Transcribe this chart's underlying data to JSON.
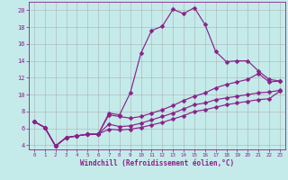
{
  "xlabel": "Windchill (Refroidissement éolien,°C)",
  "bg_color": "#c5eaea",
  "line_color": "#882288",
  "grid_color": "#aaaaaa",
  "xlim": [
    -0.5,
    23.5
  ],
  "ylim": [
    3.5,
    21.0
  ],
  "xticks": [
    0,
    1,
    2,
    3,
    4,
    5,
    6,
    7,
    8,
    9,
    10,
    11,
    12,
    13,
    14,
    15,
    16,
    17,
    18,
    19,
    20,
    21,
    22,
    23
  ],
  "yticks": [
    4,
    6,
    8,
    10,
    12,
    14,
    16,
    18,
    20
  ],
  "line1_x": [
    0,
    1,
    2,
    3,
    4,
    5,
    6,
    7,
    8,
    9,
    10,
    11,
    12,
    13,
    14,
    15,
    16,
    17,
    18,
    19,
    20,
    21,
    22,
    23
  ],
  "line1_y": [
    6.8,
    6.1,
    3.9,
    4.9,
    5.1,
    5.3,
    5.3,
    7.8,
    7.6,
    10.2,
    14.9,
    17.6,
    18.1,
    20.1,
    19.6,
    20.3,
    18.3,
    15.1,
    13.9,
    14.0,
    14.0,
    12.8,
    11.8,
    11.6
  ],
  "line2_x": [
    0,
    1,
    2,
    3,
    4,
    5,
    6,
    7,
    8,
    9,
    10,
    11,
    12,
    13,
    14,
    15,
    16,
    17,
    18,
    19,
    20,
    21,
    22,
    23
  ],
  "line2_y": [
    6.8,
    6.1,
    3.9,
    4.9,
    5.1,
    5.3,
    5.3,
    7.6,
    7.4,
    7.2,
    7.4,
    7.8,
    8.2,
    8.7,
    9.3,
    9.8,
    10.2,
    10.8,
    11.2,
    11.5,
    11.8,
    12.5,
    11.5,
    11.6
  ],
  "line3_x": [
    0,
    1,
    2,
    3,
    4,
    5,
    6,
    7,
    8,
    9,
    10,
    11,
    12,
    13,
    14,
    15,
    16,
    17,
    18,
    19,
    20,
    21,
    22,
    23
  ],
  "line3_y": [
    6.8,
    6.1,
    3.9,
    4.9,
    5.1,
    5.3,
    5.3,
    6.5,
    6.2,
    6.3,
    6.6,
    7.0,
    7.4,
    7.8,
    8.3,
    8.8,
    9.0,
    9.4,
    9.6,
    9.8,
    10.0,
    10.2,
    10.3,
    10.5
  ],
  "line4_x": [
    0,
    1,
    2,
    3,
    4,
    5,
    6,
    7,
    8,
    9,
    10,
    11,
    12,
    13,
    14,
    15,
    16,
    17,
    18,
    19,
    20,
    21,
    22,
    23
  ],
  "line4_y": [
    6.8,
    6.1,
    3.9,
    4.9,
    5.1,
    5.3,
    5.3,
    5.9,
    5.8,
    5.9,
    6.1,
    6.4,
    6.7,
    7.1,
    7.5,
    8.0,
    8.2,
    8.5,
    8.8,
    9.0,
    9.2,
    9.4,
    9.5,
    10.4
  ]
}
